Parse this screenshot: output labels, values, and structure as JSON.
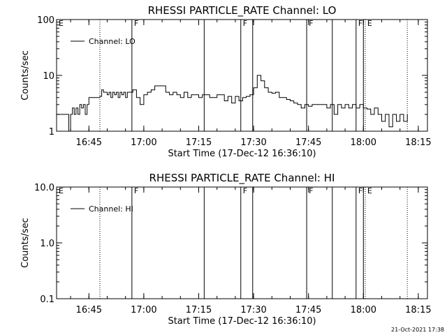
{
  "chart_data": [
    {
      "type": "line",
      "title": "RHESSI PARTICLE_RATE Channel: LO",
      "xlabel": "Start Time (17-Dec-12 16:36:10)",
      "ylabel": "Counts/sec",
      "yscale": "log",
      "ylim": [
        1,
        100
      ],
      "ytick_values": [
        1,
        10,
        100
      ],
      "ytick_labels": [
        "1",
        "10",
        "100"
      ],
      "xlim": [
        "16:36:10",
        "18:17:30"
      ],
      "xtick_labels": [
        "16:45",
        "17:00",
        "17:15",
        "17:30",
        "17:45",
        "18:00",
        "18:15"
      ],
      "legend": {
        "label": "Channel: LO",
        "placement": "top-left"
      },
      "series": [
        {
          "name": "Channel: LO",
          "x": [
            "16:36:10",
            "16:39:00",
            "16:39:30",
            "16:40:00",
            "16:40:30",
            "16:41:00",
            "16:41:30",
            "16:42:00",
            "16:42:30",
            "16:43:00",
            "16:43:30",
            "16:44:00",
            "16:44:30",
            "16:45:00",
            "16:47:00",
            "16:48:00",
            "16:48:30",
            "16:49:00",
            "16:49:30",
            "16:50:00",
            "16:50:30",
            "16:51:00",
            "16:51:30",
            "16:52:00",
            "16:52:30",
            "16:53:00",
            "16:53:30",
            "16:54:00",
            "16:54:30",
            "16:55:00",
            "16:55:30",
            "16:56:00",
            "16:57:00",
            "16:58:00",
            "16:59:00",
            "17:00:00",
            "17:01:00",
            "17:02:00",
            "17:03:00",
            "17:04:00",
            "17:05:00",
            "17:06:00",
            "17:07:00",
            "17:08:00",
            "17:09:00",
            "17:10:00",
            "17:11:00",
            "17:12:00",
            "17:13:00",
            "17:14:00",
            "17:15:00",
            "17:16:00",
            "17:17:00",
            "17:18:00",
            "17:19:00",
            "17:20:00",
            "17:21:00",
            "17:22:00",
            "17:23:00",
            "17:24:00",
            "17:25:00",
            "17:26:00",
            "17:27:00",
            "17:28:00",
            "17:29:00",
            "17:30:00",
            "17:31:00",
            "17:32:00",
            "17:33:00",
            "17:34:00",
            "17:35:00",
            "17:36:00",
            "17:37:00",
            "17:38:00",
            "17:39:00",
            "17:40:00",
            "17:41:00",
            "17:42:00",
            "17:43:00",
            "17:44:00",
            "17:45:00",
            "17:46:00",
            "17:47:00",
            "17:48:00",
            "17:49:00",
            "17:50:00",
            "17:51:00",
            "17:52:00",
            "17:53:00",
            "17:54:00",
            "17:55:00",
            "17:56:00",
            "17:57:00",
            "17:58:00",
            "17:59:00",
            "18:00:00",
            "18:01:00",
            "18:02:00",
            "18:03:00",
            "18:04:00",
            "18:05:00",
            "18:06:00",
            "18:07:00",
            "18:08:00",
            "18:09:00",
            "18:10:00",
            "18:11:00",
            "18:12:00"
          ],
          "y": [
            2,
            2,
            1,
            2,
            2.6,
            2,
            2.6,
            2,
            3,
            2.6,
            3,
            2,
            3,
            4,
            4,
            4.2,
            5.5,
            5,
            5,
            4.5,
            5,
            4,
            5,
            4.5,
            5,
            4,
            5,
            4.5,
            5,
            4,
            5,
            5,
            5.5,
            4,
            3,
            4.5,
            5,
            5.5,
            6.5,
            6.5,
            6.5,
            5,
            4.5,
            5,
            4.5,
            4,
            5,
            4,
            4.5,
            4.5,
            4,
            4.5,
            4.5,
            4,
            4,
            4.5,
            4.5,
            3.5,
            4.2,
            3.2,
            4.2,
            3.5,
            4,
            4.2,
            4.5,
            6,
            10,
            8,
            6,
            5,
            4.8,
            5,
            4,
            4,
            3.7,
            3.5,
            3.2,
            3,
            2.6,
            3,
            2.8,
            3,
            3,
            3,
            3,
            2.6,
            3,
            2,
            3,
            2.6,
            3,
            2.6,
            3,
            2.6,
            3,
            2.6,
            2.5,
            2,
            2.6,
            2,
            1.5,
            2,
            1.2,
            2,
            1.5,
            2,
            1.5,
            2
          ]
        }
      ],
      "flags": {
        "dotted_times": [
          "16:48:00",
          "18:00:30",
          "18:12:00"
        ],
        "solid_times": [
          "16:56:45",
          "17:16:30",
          "17:26:30",
          "17:29:45",
          "17:44:30",
          "17:51:30",
          "17:58:00",
          "18:00:00"
        ],
        "labels": [
          {
            "text": "E",
            "time": "16:36:10"
          },
          {
            "text": "F",
            "time": "16:56:45"
          },
          {
            "text": "F",
            "time": "17:26:30"
          },
          {
            "text": "F",
            "time": "17:44:30"
          },
          {
            "text": "F",
            "time": "17:58:00"
          },
          {
            "text": "E",
            "time": "18:00:30"
          }
        ]
      }
    },
    {
      "type": "line",
      "title": "RHESSI PARTICLE_RATE Channel: HI",
      "xlabel": "Start Time (17-Dec-12 16:36:10)",
      "ylabel": "Counts/sec",
      "yscale": "log",
      "ylim": [
        0.1,
        10
      ],
      "ytick_values": [
        0.1,
        1,
        10
      ],
      "ytick_labels": [
        "0.1",
        "1.0",
        "10.0"
      ],
      "xlim": [
        "16:36:10",
        "18:17:30"
      ],
      "xtick_labels": [
        "16:45",
        "17:00",
        "17:15",
        "17:30",
        "17:45",
        "18:00",
        "18:15"
      ],
      "legend": {
        "label": "Channel: HI",
        "placement": "top-left"
      },
      "series": [
        {
          "name": "Channel: HI",
          "x": [],
          "y": []
        }
      ],
      "flags": {
        "dotted_times": [
          "16:48:00",
          "18:00:30",
          "18:12:00"
        ],
        "solid_times": [
          "16:56:45",
          "17:16:30",
          "17:26:30",
          "17:29:45",
          "17:44:30",
          "17:51:30",
          "17:58:00",
          "18:00:00"
        ],
        "labels": [
          {
            "text": "E",
            "time": "16:36:10"
          },
          {
            "text": "F",
            "time": "16:56:45"
          },
          {
            "text": "F",
            "time": "17:26:30"
          },
          {
            "text": "F",
            "time": "17:44:30"
          },
          {
            "text": "F",
            "time": "17:58:00"
          },
          {
            "text": "E",
            "time": "18:00:30"
          }
        ]
      }
    }
  ],
  "footer": {
    "timestamp": "21-Oct-2021 17:38"
  }
}
